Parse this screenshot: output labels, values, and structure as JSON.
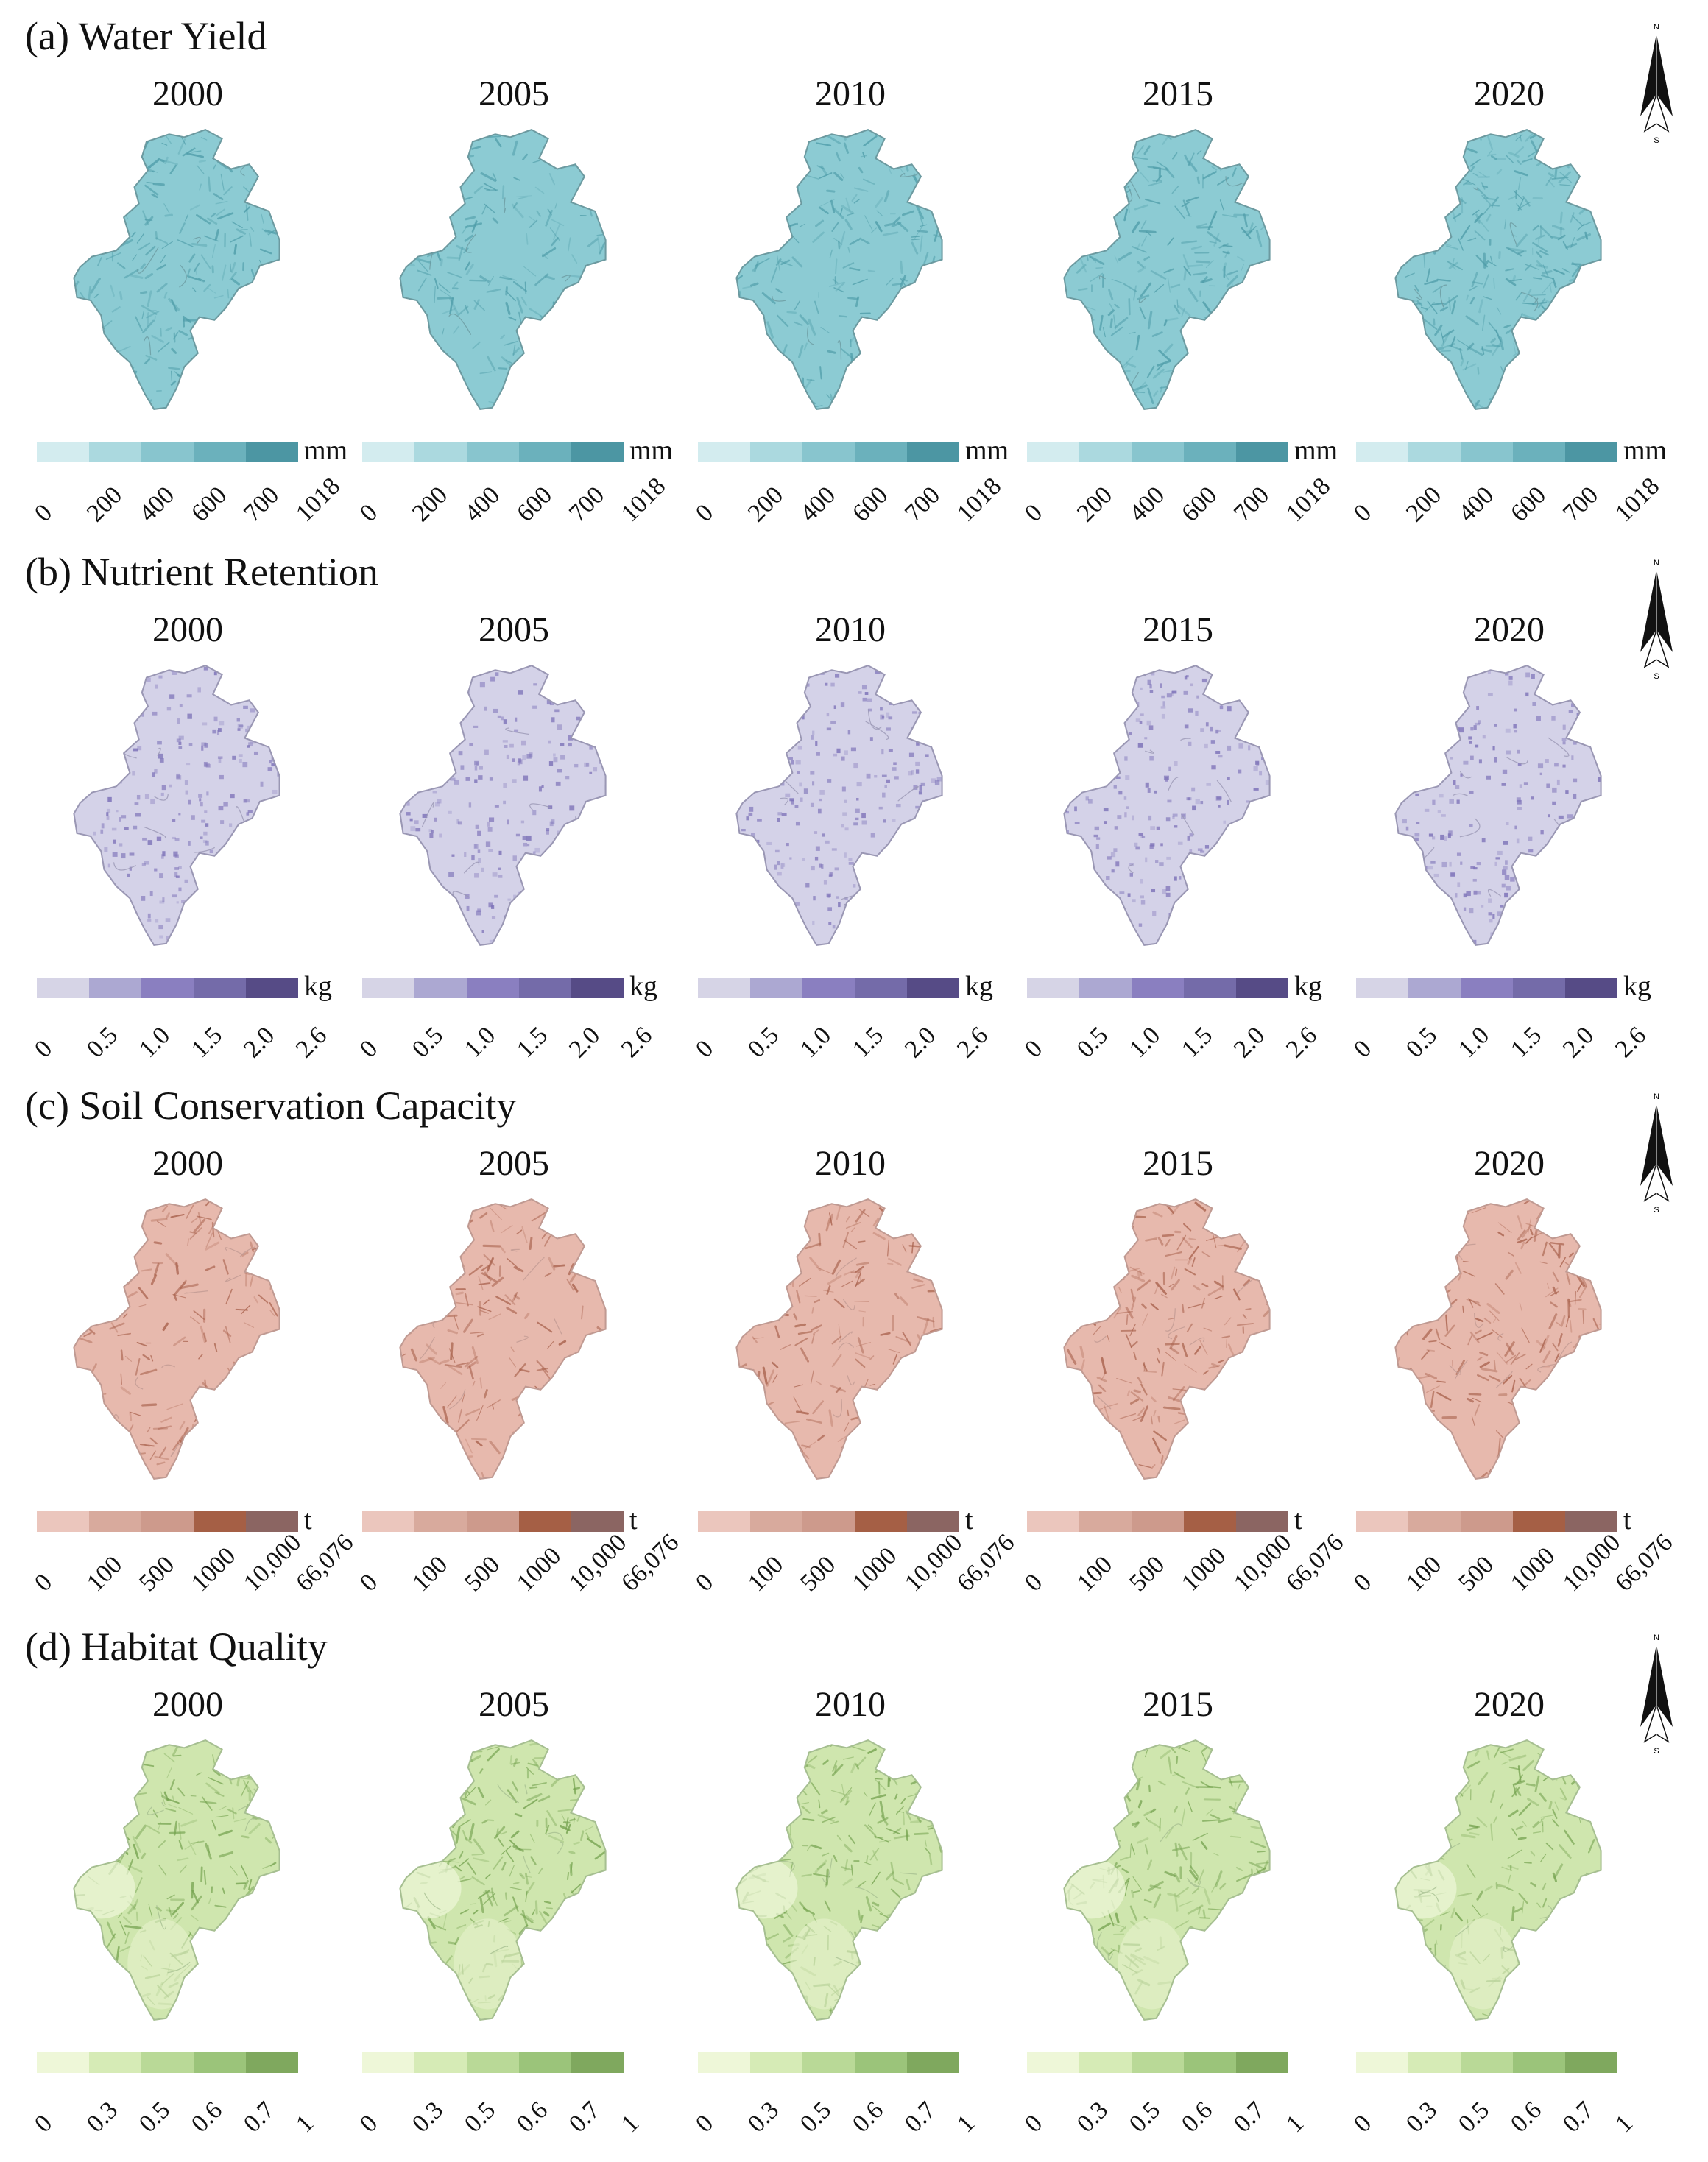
{
  "years": [
    "2000",
    "2005",
    "2010",
    "2015",
    "2020"
  ],
  "north_arrow": {
    "top_letter": "N",
    "bottom_letter": "S"
  },
  "panels": [
    {
      "title": "(a) Water Yield",
      "unit": "mm",
      "ticks": [
        "0",
        "200",
        "400",
        "600",
        "700",
        "1018"
      ],
      "legend_colors": [
        "#d3ecef",
        "#abd9df",
        "#88c5ce",
        "#6bb1bc",
        "#4c96a3"
      ],
      "map_fill": "#8ccbd3",
      "map_texture": "#4f9da9",
      "map_stroke": "#6c9aa0",
      "texture_density_by_year": [
        0.55,
        0.45,
        0.5,
        0.6,
        0.85
      ]
    },
    {
      "title": "(b) Nutrient Retention",
      "unit": "kg",
      "ticks": [
        "0",
        "0.5",
        "1.0",
        "1.5",
        "2.0",
        "2.6"
      ],
      "legend_colors": [
        "#d6d4e6",
        "#aca8d2",
        "#8a7fc0",
        "#746ba9",
        "#564b86"
      ],
      "map_fill": "#d4d2e8",
      "map_texture": "#7d72b8",
      "map_stroke": "#9a97b4",
      "texture_density_by_year": [
        0.6,
        0.6,
        0.62,
        0.6,
        0.55
      ]
    },
    {
      "title": "(c) Soil Conservation Capacity",
      "unit": "t",
      "ticks": [
        "0",
        "100",
        "500",
        "1000",
        "10,000",
        "66,076"
      ],
      "legend_colors": [
        "#ebc6bd",
        "#d8aa9d",
        "#cd9a8c",
        "#a55f45",
        "#8b6562"
      ],
      "map_fill": "#e7b9ad",
      "map_texture": "#a8614c",
      "map_stroke": "#c09a92",
      "texture_density_by_year": [
        0.45,
        0.4,
        0.5,
        0.55,
        0.5
      ]
    },
    {
      "title": "(d) Habitat Quality",
      "unit": "",
      "ticks": [
        "0",
        "0.3",
        "0.5",
        "0.6",
        "0.7",
        "1"
      ],
      "legend_colors": [
        "#eef7d8",
        "#d6ebb6",
        "#b9d997",
        "#9bc47a",
        "#7fa85e"
      ],
      "map_fill": "#cfe6ae",
      "map_texture": "#74a24f",
      "map_stroke": "#a6bf91",
      "texture_density_by_year": [
        0.6,
        0.6,
        0.62,
        0.6,
        0.55
      ]
    }
  ]
}
